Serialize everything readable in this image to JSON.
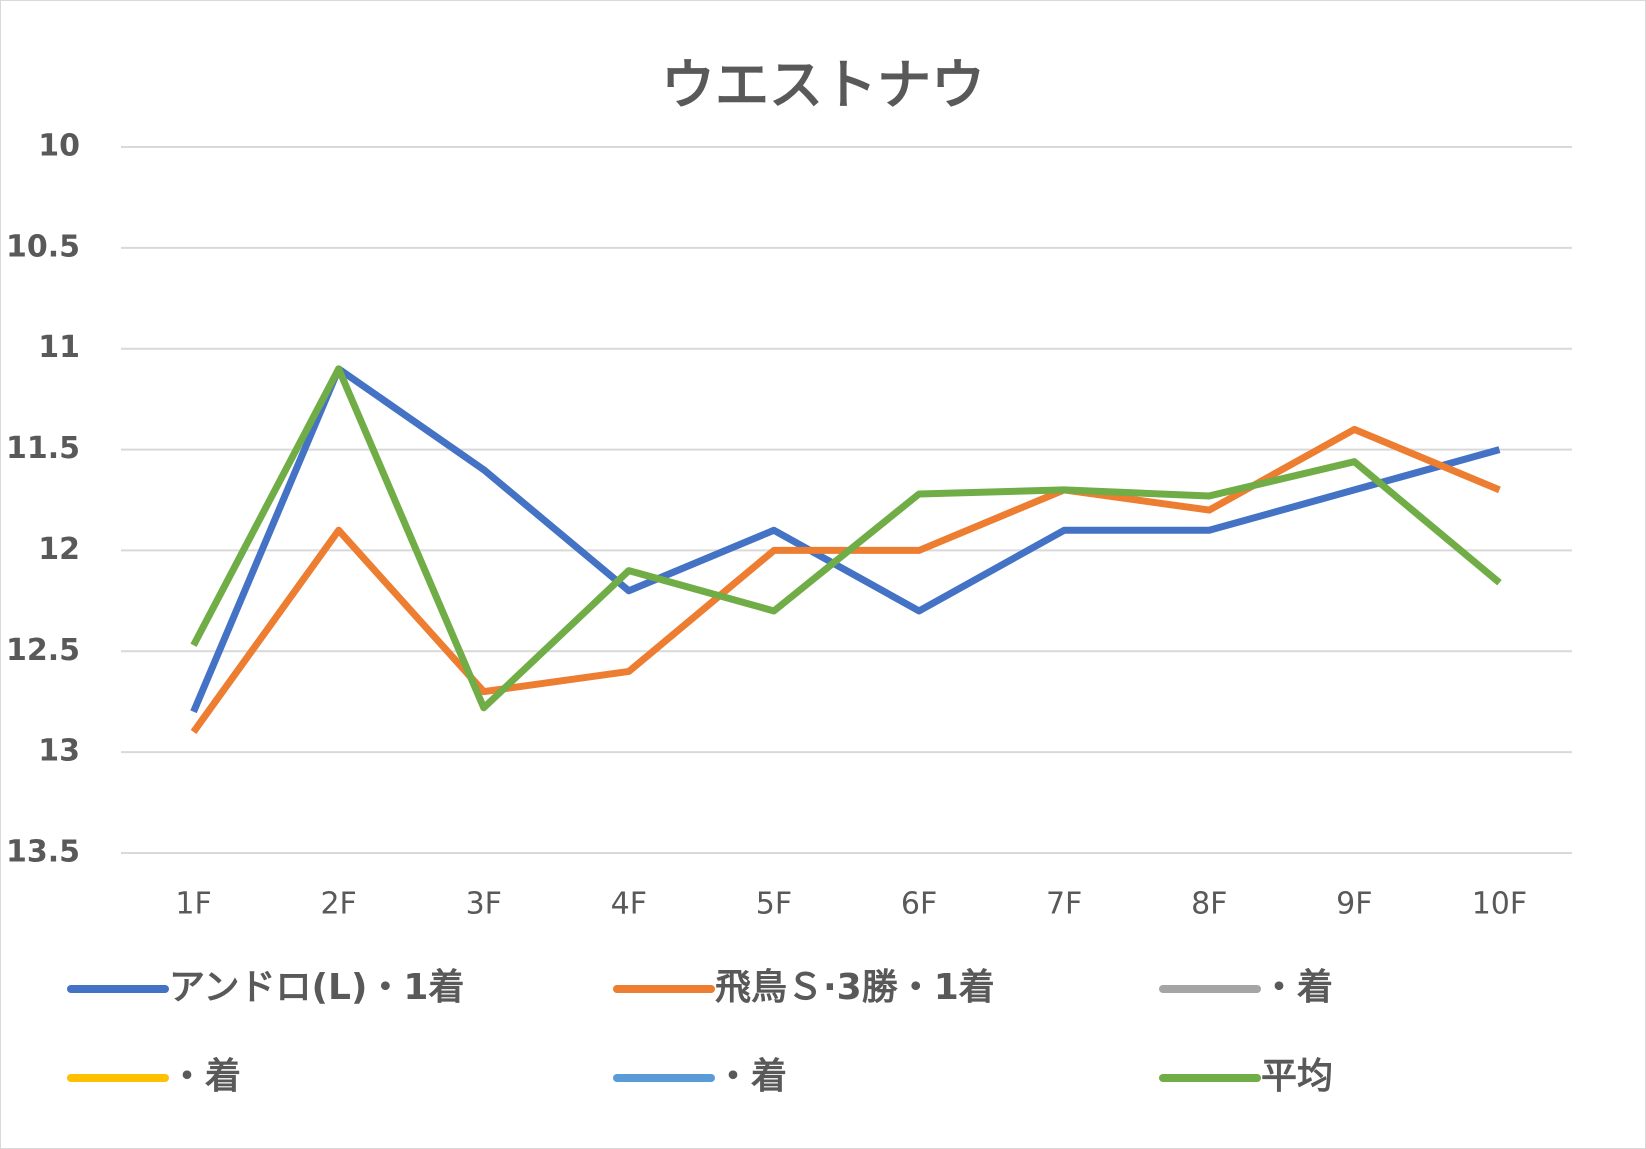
{
  "chart_data": {
    "type": "line",
    "title": "ウエストナウ",
    "categories": [
      "1F",
      "2F",
      "3F",
      "4F",
      "5F",
      "6F",
      "7F",
      "8F",
      "9F",
      "10F"
    ],
    "series": [
      {
        "name": "アンドロ(L)・1着",
        "color": "#4472c4",
        "values": [
          12.8,
          11.1,
          11.6,
          12.2,
          11.9,
          12.3,
          11.9,
          11.9,
          11.7,
          11.5
        ]
      },
      {
        "name": "飛鳥Ｓ·3勝・1着",
        "color": "#ed7d31",
        "values": [
          12.9,
          11.9,
          12.7,
          12.6,
          12.0,
          12.0,
          11.7,
          11.8,
          11.4,
          11.7
        ]
      },
      {
        "name": "・着",
        "color": "#a5a5a5",
        "values": [
          null,
          null,
          null,
          null,
          null,
          null,
          null,
          null,
          null,
          null
        ]
      },
      {
        "name": "・着",
        "color": "#ffc000",
        "values": [
          null,
          null,
          null,
          null,
          null,
          null,
          null,
          null,
          null,
          null
        ]
      },
      {
        "name": "・着",
        "color": "#5b9bd5",
        "values": [
          null,
          null,
          null,
          null,
          null,
          null,
          null,
          null,
          null,
          null
        ]
      },
      {
        "name": "平均",
        "color": "#70ad47",
        "values": [
          12.47,
          11.1,
          12.78,
          12.1,
          12.3,
          11.72,
          11.7,
          11.73,
          11.56,
          12.16
        ]
      }
    ],
    "ylim": [
      10,
      13.5
    ],
    "yticks": [
      10,
      10.5,
      11,
      11.5,
      12,
      12.5,
      13,
      13.5
    ],
    "y_inverted": true,
    "grid": true,
    "legend": "bottom"
  }
}
